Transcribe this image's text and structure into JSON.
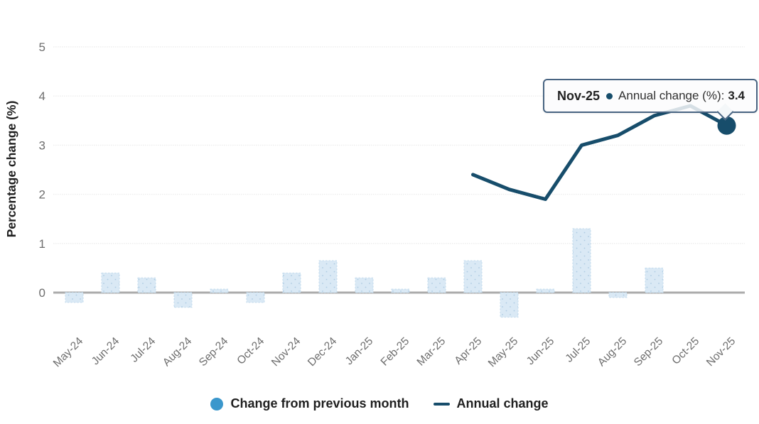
{
  "chart_data": {
    "type": "bar",
    "title": "",
    "xlabel": "",
    "ylabel": "Percentage change (%)",
    "categories": [
      "May-24",
      "Jun-24",
      "Jul-24",
      "Aug-24",
      "Sep-24",
      "Oct-24",
      "Nov-24",
      "Dec-24",
      "Jan-25",
      "Feb-25",
      "Mar-25",
      "Apr-25",
      "May-25",
      "Jun-25",
      "Jul-25",
      "Aug-25",
      "Sep-25",
      "Oct-25",
      "Nov-25"
    ],
    "series": [
      {
        "name": "Change from previous month",
        "type": "bar",
        "values": [
          -0.2,
          0.4,
          0.3,
          -0.3,
          0.07,
          -0.2,
          0.4,
          0.65,
          0.3,
          0.07,
          0.3,
          0.65,
          -0.5,
          0.07,
          1.3,
          -0.1,
          0.5,
          0,
          0
        ]
      },
      {
        "name": "Annual change",
        "type": "line",
        "values": [
          null,
          null,
          null,
          null,
          null,
          null,
          null,
          null,
          null,
          null,
          null,
          2.4,
          2.1,
          1.9,
          3.0,
          3.2,
          3.6,
          3.8,
          3.4
        ]
      }
    ],
    "highlighted_point": {
      "category": "Nov-25",
      "series": "Annual change",
      "value": 3.4
    },
    "yticks": [
      0,
      1,
      2,
      3,
      4,
      5
    ],
    "ylim": [
      -0.9,
      5.2
    ],
    "grid": true,
    "legend_position": "bottom"
  },
  "tooltip": {
    "label": "Nov-25",
    "series_label": "Annual change (%):",
    "value": "3.4"
  },
  "legend": {
    "items": [
      {
        "label": "Change from previous month",
        "marker": "circle"
      },
      {
        "label": "Annual change",
        "marker": "line"
      }
    ]
  },
  "colors": {
    "line": "#174d6b",
    "highlight_dot": "#174d6b",
    "bar_fill": "#dae9f5",
    "bar_dot": "#aecbe3",
    "bar_border": "#c3dbed",
    "legend_circle": "#3b97cc",
    "zero_line": "#ababab",
    "gridline": "#ededed",
    "tick_text": "#6e6e6e",
    "axis_title_text": "#1f1f1f",
    "tooltip_border": "#486482"
  }
}
